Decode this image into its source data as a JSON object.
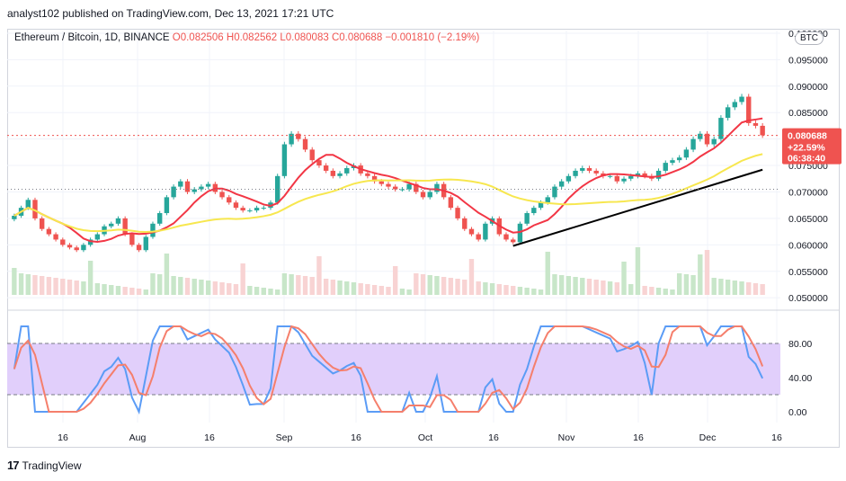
{
  "header": {
    "publisher": "analyst102 published on TradingView.com, Dec 13, 2021 17:21 UTC"
  },
  "legend": {
    "symbol": "Ethereum / Bitcoin, 1D, BINANCE",
    "open": "O0.082506",
    "high": "H0.082562",
    "low": "L0.080083",
    "close": "C0.080688",
    "change": "−0.001810 (−2.19%)"
  },
  "currency_badge": "BTC",
  "price_tag": {
    "price": "0.080688",
    "change": "+22.59%",
    "countdown": "06:38:40"
  },
  "footer": {
    "brand": "TradingView",
    "logo_text": "17"
  },
  "colors": {
    "up": "#26a69a",
    "down": "#ef5350",
    "ma_fast": "#f23645",
    "ma_slow": "#f7e74f",
    "trendline": "#000000",
    "stoch_k": "#5b9cf6",
    "stoch_d": "#f57f6c",
    "stoch_band": "#e1cffb"
  },
  "chart_data": [
    {
      "type": "candlestick",
      "title": "Ethereum / Bitcoin, 1D, BINANCE",
      "y_ticks": [
        "0.050000",
        "0.055000",
        "0.060000",
        "0.065000",
        "0.070000",
        "0.075000",
        "0.080000",
        "0.085000",
        "0.090000",
        "0.095000",
        "0.100000"
      ],
      "ylim": [
        0.0485,
        0.1005
      ],
      "x_ticks": [
        "16",
        "Aug",
        "16",
        "Sep",
        "16",
        "Oct",
        "16",
        "Nov",
        "16",
        "Dec",
        "16"
      ],
      "last_price": 0.080688,
      "overlays": [
        "moving average (red)",
        "moving average (yellow)",
        "trend line (black)",
        "volume bars"
      ],
      "close_series": [
        0.0655,
        0.067,
        0.0685,
        0.065,
        0.063,
        0.062,
        0.061,
        0.06,
        0.0595,
        0.059,
        0.06,
        0.061,
        0.062,
        0.0635,
        0.064,
        0.065,
        0.062,
        0.06,
        0.059,
        0.0615,
        0.064,
        0.066,
        0.069,
        0.071,
        0.072,
        0.07,
        0.0705,
        0.071,
        0.0715,
        0.07,
        0.069,
        0.068,
        0.067,
        0.0665,
        0.0665,
        0.067,
        0.067,
        0.068,
        0.073,
        0.079,
        0.081,
        0.08,
        0.078,
        0.076,
        0.075,
        0.074,
        0.073,
        0.0735,
        0.0745,
        0.075,
        0.0735,
        0.073,
        0.072,
        0.0715,
        0.071,
        0.0705,
        0.0705,
        0.0715,
        0.07,
        0.069,
        0.07,
        0.0715,
        0.069,
        0.067,
        0.065,
        0.063,
        0.062,
        0.061,
        0.064,
        0.065,
        0.062,
        0.061,
        0.0605,
        0.064,
        0.066,
        0.067,
        0.068,
        0.069,
        0.071,
        0.072,
        0.073,
        0.074,
        0.0745,
        0.074,
        0.0735,
        0.073,
        0.073,
        0.072,
        0.0725,
        0.073,
        0.0735,
        0.073,
        0.0725,
        0.074,
        0.0755,
        0.076,
        0.0765,
        0.078,
        0.08,
        0.081,
        0.079,
        0.08,
        0.084,
        0.086,
        0.087,
        0.088,
        0.083,
        0.0825,
        0.0807
      ],
      "stoch_levels": [
        80,
        20
      ],
      "stoch_ticks": [
        "80.00",
        "40.00",
        "0.00"
      ]
    }
  ]
}
